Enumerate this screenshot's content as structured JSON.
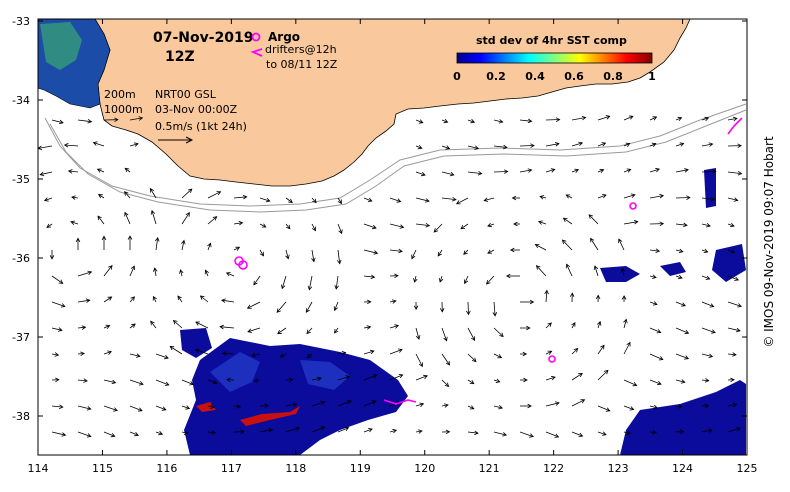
{
  "map": {
    "date": "07-Nov-2019",
    "time": "12Z",
    "legend": {
      "argo_label": "Argo",
      "drifters_label": "drifters@12h",
      "drifters_to": "to 08/11 12Z"
    },
    "contours": {
      "c200": "200m",
      "c1000": "1000m"
    },
    "product": "NRT00 GSL",
    "product_time": "03-Nov 00:00Z",
    "vector_scale": "0.5m/s (1kt 24h)",
    "colorbar": {
      "title": "std dev of 4hr SST comp",
      "ticks": [
        "0",
        "0.2",
        "0.4",
        "0.6",
        "0.8",
        "1"
      ]
    },
    "credit": "© IMOS 09-Nov-2019 09:07 Hobart",
    "x_ticks": [
      "114",
      "115",
      "116",
      "117",
      "118",
      "119",
      "120",
      "121",
      "122",
      "123",
      "124",
      "125"
    ],
    "y_ticks": [
      "-33",
      "-34",
      "-35",
      "-36",
      "-37",
      "-38"
    ],
    "colors": {
      "land": "#f9c89c",
      "argo": "#ff00ff",
      "drifter": "#ff00ff",
      "sst_low": "#0a0a9c",
      "sst_high": "#c81010"
    }
  }
}
